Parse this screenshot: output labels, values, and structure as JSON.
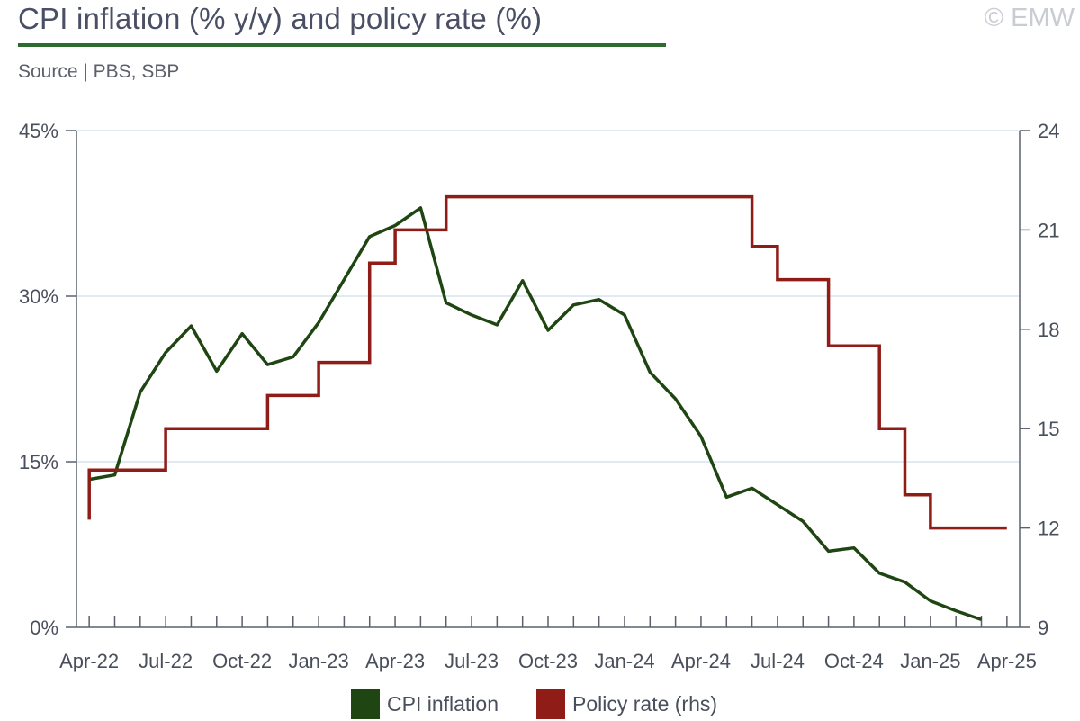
{
  "header": {
    "title": "CPI inflation (% y/y) and policy rate (%)",
    "source": "Source | PBS, SBP",
    "copyright": "© EMW"
  },
  "colors": {
    "cpi": "#1f4512",
    "policy": "#8f1c17",
    "title_rule": "#2e6b2e",
    "grid": "#d6e3ee",
    "axis": "#5b606c"
  },
  "chart_data": {
    "type": "line",
    "title": "CPI inflation (% y/y) and policy rate (%)",
    "x_tick_labels": [
      "Apr-22",
      "Jul-22",
      "Oct-22",
      "Jan-23",
      "Apr-23",
      "Jul-23",
      "Oct-23",
      "Jan-24",
      "Apr-24",
      "Jul-24",
      "Oct-24",
      "Jan-25",
      "Apr-25"
    ],
    "x_range": [
      "Apr-22",
      "Apr-25"
    ],
    "y_left": {
      "range": [
        0,
        45
      ],
      "ticks": [
        0,
        15,
        30,
        45
      ],
      "tick_labels": [
        "0%",
        "15%",
        "30%",
        "45%"
      ]
    },
    "y_right": {
      "range": [
        9,
        24
      ],
      "ticks": [
        9,
        12,
        15,
        18,
        21,
        24
      ],
      "tick_labels": [
        "9",
        "12",
        "15",
        "18",
        "21",
        "24"
      ]
    },
    "grid": "horizontal",
    "legend_position": "bottom-center",
    "series": [
      {
        "name": "CPI inflation",
        "axis": "left",
        "x": [
          "Apr-22",
          "May-22",
          "Jun-22",
          "Jul-22",
          "Aug-22",
          "Sep-22",
          "Oct-22",
          "Nov-22",
          "Dec-22",
          "Jan-23",
          "Feb-23",
          "Mar-23",
          "Apr-23",
          "May-23",
          "Jun-23",
          "Jul-23",
          "Aug-23",
          "Sep-23",
          "Oct-23",
          "Nov-23",
          "Dec-23",
          "Jan-24",
          "Feb-24",
          "Mar-24",
          "Apr-24",
          "May-24",
          "Jun-24",
          "Jul-24",
          "Aug-24",
          "Sep-24",
          "Oct-24",
          "Nov-24",
          "Dec-24",
          "Jan-25",
          "Feb-25",
          "Mar-25"
        ],
        "values": [
          13.4,
          13.8,
          21.3,
          24.9,
          27.3,
          23.2,
          26.6,
          23.8,
          24.5,
          27.6,
          31.5,
          35.4,
          36.4,
          38.0,
          29.4,
          28.3,
          27.4,
          31.4,
          26.9,
          29.2,
          29.7,
          28.3,
          23.1,
          20.7,
          17.3,
          11.8,
          12.6,
          11.1,
          9.6,
          6.9,
          7.2,
          4.9,
          4.1,
          2.4,
          1.5,
          0.7
        ]
      },
      {
        "name": "Policy rate (rhs)",
        "axis": "right",
        "x": [
          "Apr-22",
          "Apr-22",
          "Jul-22",
          "Oct-22",
          "Nov-22",
          "Jan-23",
          "Mar-23",
          "Apr-23",
          "Jun-23",
          "Jun-24",
          "Jul-24",
          "Sep-24",
          "Nov-24",
          "Dec-24",
          "Jan-25",
          "Apr-25"
        ],
        "values": [
          12.25,
          13.75,
          15.0,
          15.0,
          16.0,
          17.0,
          20.0,
          21.0,
          22.0,
          20.5,
          19.5,
          17.5,
          15.0,
          13.0,
          12.0,
          12.0
        ]
      }
    ]
  }
}
